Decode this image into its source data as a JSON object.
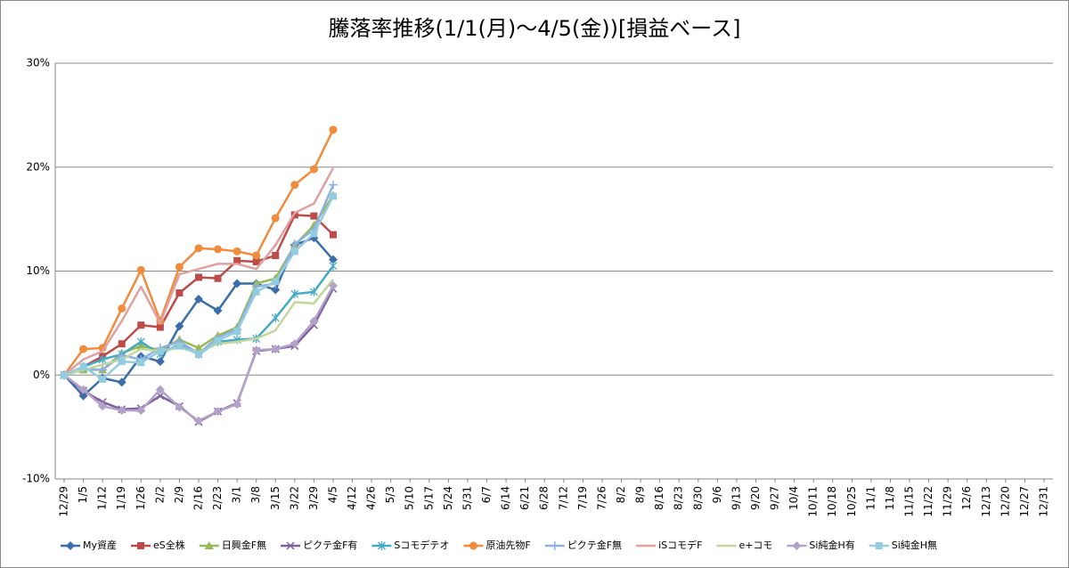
{
  "chart_data": {
    "type": "line",
    "title": "騰落率推移(1/1(月)～4/5(金))[損益ベース]",
    "categories": [
      "12/29",
      "1/5",
      "1/12",
      "1/19",
      "1/26",
      "2/2",
      "2/9",
      "2/16",
      "2/23",
      "3/1",
      "3/8",
      "3/15",
      "3/22",
      "3/29",
      "4/5",
      "4/12",
      "4/26",
      "5/3",
      "5/10",
      "5/17",
      "5/24",
      "5/31",
      "6/7",
      "6/14",
      "6/21",
      "6/28",
      "7/12",
      "7/19",
      "7/26",
      "8/2",
      "8/9",
      "8/16",
      "8/23",
      "8/30",
      "9/6",
      "9/13",
      "9/20",
      "9/27",
      "10/4",
      "10/11",
      "10/18",
      "10/25",
      "11/1",
      "11/8",
      "11/15",
      "11/22",
      "11/29",
      "12/6",
      "12/13",
      "12/20",
      "12/27",
      "12/31"
    ],
    "ylim": [
      -10,
      30
    ],
    "yticks": [
      {
        "value": -10,
        "label": "-10%"
      },
      {
        "value": 0,
        "label": "0%"
      },
      {
        "value": 10,
        "label": "10%"
      },
      {
        "value": 20,
        "label": "20%"
      },
      {
        "value": 30,
        "label": "30%"
      }
    ],
    "grid": true,
    "legend": "bottom",
    "series": [
      {
        "name": "My資産",
        "color": "#3b6ea8",
        "marker": "diamond",
        "values": [
          0,
          -2.0,
          -0.3,
          -0.7,
          1.8,
          1.3,
          4.7,
          7.3,
          6.2,
          8.8,
          8.8,
          8.2,
          12.5,
          13.2,
          11.1,
          null,
          null,
          null,
          null,
          null,
          null,
          null,
          null,
          null,
          null,
          null,
          null,
          null,
          null,
          null,
          null,
          null,
          null,
          null,
          null,
          null,
          null,
          null,
          null,
          null,
          null,
          null,
          null,
          null,
          null,
          null,
          null,
          null,
          null,
          null,
          null,
          null
        ]
      },
      {
        "name": "eS全株",
        "color": "#be4b48",
        "marker": "square",
        "values": [
          0,
          0.8,
          1.8,
          3.0,
          4.8,
          4.6,
          7.9,
          9.4,
          9.3,
          11.0,
          10.9,
          11.5,
          15.4,
          15.3,
          13.5,
          null,
          null,
          null,
          null,
          null,
          null,
          null,
          null,
          null,
          null,
          null,
          null,
          null,
          null,
          null,
          null,
          null,
          null,
          null,
          null,
          null,
          null,
          null,
          null,
          null,
          null,
          null,
          null,
          null,
          null,
          null,
          null,
          null,
          null,
          null,
          null,
          null
        ]
      },
      {
        "name": "日興金F無",
        "color": "#98b954",
        "marker": "triangle",
        "values": [
          0,
          0.5,
          0.5,
          2.1,
          2.8,
          2.4,
          3.4,
          2.6,
          3.8,
          4.6,
          8.8,
          9.3,
          12.5,
          14.4,
          17.3,
          null,
          null,
          null,
          null,
          null,
          null,
          null,
          null,
          null,
          null,
          null,
          null,
          null,
          null,
          null,
          null,
          null,
          null,
          null,
          null,
          null,
          null,
          null,
          null,
          null,
          null,
          null,
          null,
          null,
          null,
          null,
          null,
          null,
          null,
          null,
          null,
          null
        ]
      },
      {
        "name": "ピクテ金F有",
        "color": "#7d60a0",
        "marker": "x",
        "values": [
          0,
          -1.5,
          -2.6,
          -3.3,
          -3.2,
          -2.0,
          -3.0,
          -4.5,
          -3.5,
          -2.7,
          2.3,
          2.5,
          2.8,
          4.8,
          8.3,
          null,
          null,
          null,
          null,
          null,
          null,
          null,
          null,
          null,
          null,
          null,
          null,
          null,
          null,
          null,
          null,
          null,
          null,
          null,
          null,
          null,
          null,
          null,
          null,
          null,
          null,
          null,
          null,
          null,
          null,
          null,
          null,
          null,
          null,
          null,
          null,
          null
        ]
      },
      {
        "name": "Sコモデテオ",
        "color": "#46aac5",
        "marker": "star",
        "values": [
          0,
          0.8,
          1.5,
          2.0,
          3.2,
          2.0,
          3.0,
          2.0,
          3.2,
          3.4,
          3.5,
          5.5,
          7.8,
          8.0,
          10.5,
          null,
          null,
          null,
          null,
          null,
          null,
          null,
          null,
          null,
          null,
          null,
          null,
          null,
          null,
          null,
          null,
          null,
          null,
          null,
          null,
          null,
          null,
          null,
          null,
          null,
          null,
          null,
          null,
          null,
          null,
          null,
          null,
          null,
          null,
          null,
          null,
          null
        ]
      },
      {
        "name": "原油先物F",
        "color": "#f08c3c",
        "marker": "circle",
        "values": [
          0,
          2.5,
          2.6,
          6.4,
          10.1,
          5.2,
          10.4,
          12.2,
          12.1,
          11.9,
          11.5,
          15.1,
          18.3,
          19.8,
          23.6,
          null,
          null,
          null,
          null,
          null,
          null,
          null,
          null,
          null,
          null,
          null,
          null,
          null,
          null,
          null,
          null,
          null,
          null,
          null,
          null,
          null,
          null,
          null,
          null,
          null,
          null,
          null,
          null,
          null,
          null,
          null,
          null,
          null,
          null,
          null,
          null,
          null
        ]
      },
      {
        "name": "ピクテ金F無",
        "color": "#8fb0e0",
        "marker": "plus",
        "values": [
          0,
          0.6,
          0.5,
          1.9,
          1.5,
          2.6,
          3.2,
          2.1,
          3.6,
          4.4,
          8.5,
          8.8,
          12.6,
          14.0,
          18.3,
          null,
          null,
          null,
          null,
          null,
          null,
          null,
          null,
          null,
          null,
          null,
          null,
          null,
          null,
          null,
          null,
          null,
          null,
          null,
          null,
          null,
          null,
          null,
          null,
          null,
          null,
          null,
          null,
          null,
          null,
          null,
          null,
          null,
          null,
          null,
          null,
          null
        ]
      },
      {
        "name": "iSコモデF",
        "color": "#e0a0a0",
        "marker": "none",
        "values": [
          0,
          1.5,
          2.3,
          5.2,
          8.5,
          5.0,
          9.7,
          10.2,
          10.7,
          10.7,
          10.2,
          12.5,
          15.6,
          16.5,
          19.9,
          null,
          null,
          null,
          null,
          null,
          null,
          null,
          null,
          null,
          null,
          null,
          null,
          null,
          null,
          null,
          null,
          null,
          null,
          null,
          null,
          null,
          null,
          null,
          null,
          null,
          null,
          null,
          null,
          null,
          null,
          null,
          null,
          null,
          null,
          null,
          null,
          null
        ]
      },
      {
        "name": "e+コモ",
        "color": "#c3d69b",
        "marker": "none",
        "values": [
          0,
          0.5,
          1.0,
          1.5,
          2.5,
          2.3,
          2.6,
          2.2,
          3.0,
          3.2,
          3.5,
          4.3,
          7.0,
          6.9,
          9.2,
          null,
          null,
          null,
          null,
          null,
          null,
          null,
          null,
          null,
          null,
          null,
          null,
          null,
          null,
          null,
          null,
          null,
          null,
          null,
          null,
          null,
          null,
          null,
          null,
          null,
          null,
          null,
          null,
          null,
          null,
          null,
          null,
          null,
          null,
          null,
          null,
          null
        ]
      },
      {
        "name": "Si純金H有",
        "color": "#b3a2c7",
        "marker": "diamond",
        "values": [
          0,
          -1.4,
          -3.0,
          -3.4,
          -3.4,
          -1.4,
          -3.1,
          -4.4,
          -3.5,
          -2.8,
          2.4,
          2.5,
          3.0,
          5.2,
          8.6,
          null,
          null,
          null,
          null,
          null,
          null,
          null,
          null,
          null,
          null,
          null,
          null,
          null,
          null,
          null,
          null,
          null,
          null,
          null,
          null,
          null,
          null,
          null,
          null,
          null,
          null,
          null,
          null,
          null,
          null,
          null,
          null,
          null,
          null,
          null,
          null,
          null
        ]
      },
      {
        "name": "Si純金H無",
        "color": "#93cddd",
        "marker": "square",
        "values": [
          0,
          0.8,
          -0.4,
          1.3,
          1.2,
          2.3,
          2.8,
          2.0,
          3.3,
          4.2,
          8.0,
          9.0,
          11.9,
          13.6,
          17.2,
          null,
          null,
          null,
          null,
          null,
          null,
          null,
          null,
          null,
          null,
          null,
          null,
          null,
          null,
          null,
          null,
          null,
          null,
          null,
          null,
          null,
          null,
          null,
          null,
          null,
          null,
          null,
          null,
          null,
          null,
          null,
          null,
          null,
          null,
          null,
          null,
          null
        ]
      }
    ]
  }
}
